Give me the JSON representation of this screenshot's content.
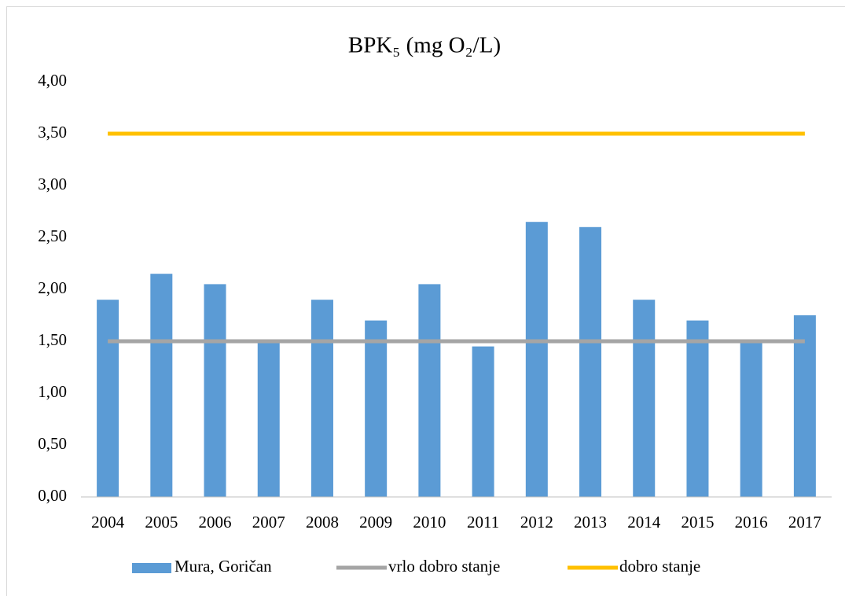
{
  "chart_data": {
    "type": "bar",
    "title": "BPK₅ (mg O₂/L)",
    "categories": [
      "2004",
      "2005",
      "2006",
      "2007",
      "2008",
      "2009",
      "2010",
      "2011",
      "2012",
      "2013",
      "2014",
      "2015",
      "2016",
      "2017"
    ],
    "series": [
      {
        "name": "Mura, Goričan",
        "type": "bar",
        "color": "#5b9bd5",
        "values": [
          1.9,
          2.15,
          2.05,
          1.5,
          1.9,
          1.7,
          2.05,
          1.45,
          2.65,
          2.6,
          1.9,
          1.7,
          1.5,
          1.75
        ]
      },
      {
        "name": "vrlo dobro stanje",
        "type": "line",
        "color": "#a5a5a5",
        "values": [
          1.5,
          1.5,
          1.5,
          1.5,
          1.5,
          1.5,
          1.5,
          1.5,
          1.5,
          1.5,
          1.5,
          1.5,
          1.5,
          1.5
        ]
      },
      {
        "name": "dobro stanje",
        "type": "line",
        "color": "#ffc000",
        "values": [
          3.5,
          3.5,
          3.5,
          3.5,
          3.5,
          3.5,
          3.5,
          3.5,
          3.5,
          3.5,
          3.5,
          3.5,
          3.5,
          3.5
        ]
      }
    ],
    "ylim": [
      0,
      4
    ],
    "yticks": [
      {
        "value": 0,
        "label": "0,00"
      },
      {
        "value": 0.5,
        "label": "0,50"
      },
      {
        "value": 1,
        "label": "1,00"
      },
      {
        "value": 1.5,
        "label": "1,50"
      },
      {
        "value": 2,
        "label": "2,00"
      },
      {
        "value": 2.5,
        "label": "2,50"
      },
      {
        "value": 3,
        "label": "3,00"
      },
      {
        "value": 3.5,
        "label": "3,50"
      },
      {
        "value": 4,
        "label": "4,00"
      }
    ],
    "grid": false,
    "legend": "bottom"
  }
}
